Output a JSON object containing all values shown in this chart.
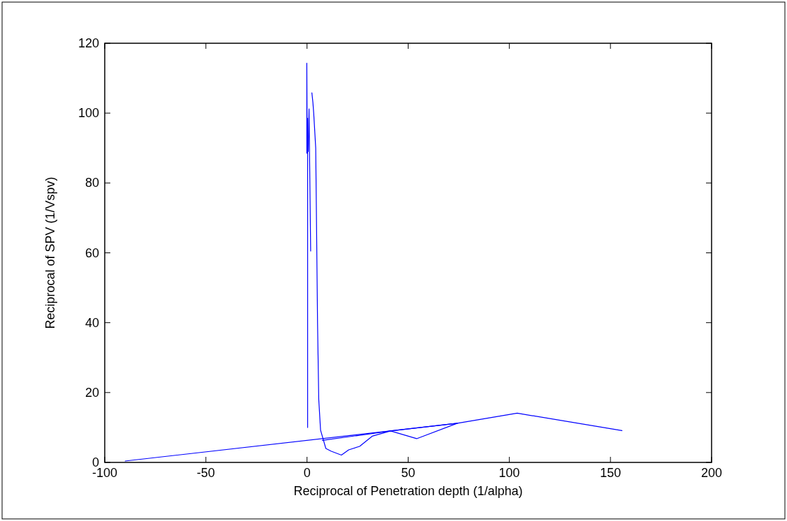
{
  "chart_data": {
    "type": "line",
    "xlabel": "Reciprocal of Penetration depth (1/alpha)",
    "ylabel": "Reciprocal of SPV (1/Vspv)",
    "xlim": [
      -100,
      200
    ],
    "xticks": [
      -100,
      -50,
      0,
      50,
      100,
      150,
      200
    ],
    "ylim": [
      0,
      120
    ],
    "yticks": [
      0,
      20,
      40,
      60,
      80,
      100,
      120
    ],
    "grid": false,
    "marker": "none",
    "line_style": "solid",
    "series": [
      {
        "color": "#0000ff",
        "x": [
          -0.1,
          -0.1,
          0.1,
          0.3,
          0.3
        ],
        "values": [
          88.5,
          114.3,
          89,
          98.5,
          10
        ]
      },
      {
        "color": "#0000ff",
        "x": [
          0.6,
          1.0,
          1.8
        ],
        "values": [
          89,
          101.2,
          60.5
        ]
      },
      {
        "color": "#0000ff",
        "x": [
          2.4,
          2.9,
          3.3,
          4.3,
          5.2,
          5.8,
          6.7,
          9.3,
          12,
          17,
          20.6,
          26,
          32.2,
          41.3,
          54.2,
          74.3
        ],
        "values": [
          105.8,
          103.1,
          100,
          90,
          40,
          18,
          9.2,
          4,
          3.2,
          2.1,
          3.6,
          4.6,
          7.5,
          9.0,
          6.8,
          11.2
        ]
      },
      {
        "color": "#0000ff",
        "x": [
          -89.9,
          74.3,
          103.9,
          155.7
        ],
        "values": [
          0.4,
          11.2,
          14.1,
          9.1
        ]
      },
      {
        "color": "#0000ff",
        "x": [
          7.6,
          41.3,
          74.3
        ],
        "values": [
          6.3,
          9.0,
          11.2
        ]
      }
    ]
  }
}
